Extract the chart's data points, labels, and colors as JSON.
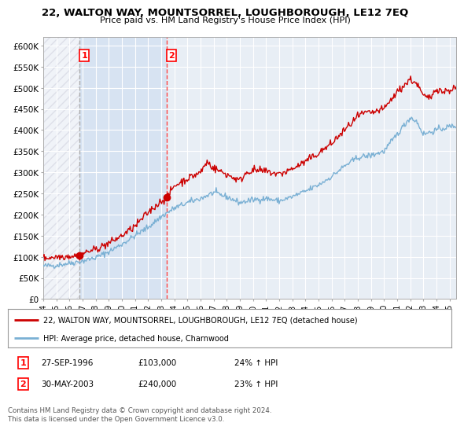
{
  "title": "22, WALTON WAY, MOUNTSORREL, LOUGHBOROUGH, LE12 7EQ",
  "subtitle": "Price paid vs. HM Land Registry's House Price Index (HPI)",
  "sale1_label": "27-SEP-1996",
  "sale1_price": 103000,
  "sale1_hpi_pct": "24%",
  "sale2_label": "30-MAY-2003",
  "sale2_price": 240000,
  "sale2_hpi_pct": "23%",
  "legend_line1": "22, WALTON WAY, MOUNTSORREL, LOUGHBOROUGH, LE12 7EQ (detached house)",
  "legend_line2": "HPI: Average price, detached house, Charnwood",
  "footer": "Contains HM Land Registry data © Crown copyright and database right 2024.\nThis data is licensed under the Open Government Licence v3.0.",
  "hpi_color": "#7ab0d4",
  "price_color": "#cc0000",
  "dot_color": "#cc0000",
  "vline1_color": "#aaaaaa",
  "vline2_color": "#ff4444",
  "background_plot": "#e8eef5",
  "background_hatch": "#d0d8e8",
  "background_shade": "#dce8f5",
  "background_fig": "#ffffff",
  "ylim": [
    0,
    620000
  ],
  "yticks": [
    0,
    50000,
    100000,
    150000,
    200000,
    250000,
    300000,
    350000,
    400000,
    450000,
    500000,
    550000,
    600000
  ],
  "xmin": 1994.0,
  "xmax": 2025.5,
  "sale1_x": 1996.75,
  "sale2_x": 2003.416,
  "xlabel_years": [
    "94",
    "95",
    "96",
    "97",
    "98",
    "99",
    "00",
    "01",
    "02",
    "03",
    "04",
    "05",
    "06",
    "07",
    "08",
    "09",
    "10",
    "11",
    "12",
    "13",
    "14",
    "15",
    "16",
    "17",
    "18",
    "19",
    "20",
    "21",
    "22",
    "23",
    "24",
    "25"
  ],
  "xlabel_year_vals": [
    1994,
    1995,
    1996,
    1997,
    1998,
    1999,
    2000,
    2001,
    2002,
    2003,
    2004,
    2005,
    2006,
    2007,
    2008,
    2009,
    2010,
    2011,
    2012,
    2013,
    2014,
    2015,
    2016,
    2017,
    2018,
    2019,
    2020,
    2021,
    2022,
    2023,
    2024,
    2025
  ]
}
